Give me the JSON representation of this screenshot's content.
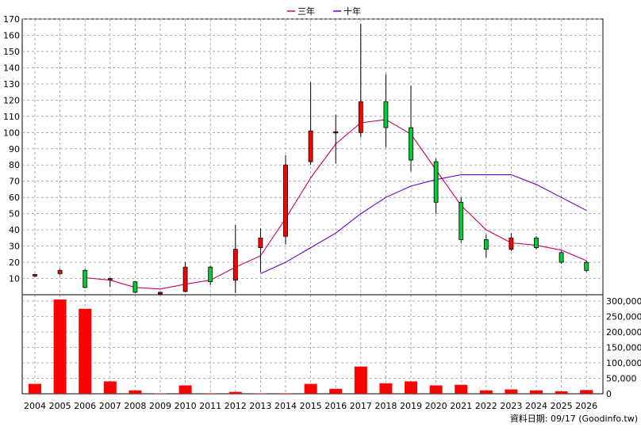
{
  "chart_data": [
    {
      "type": "candlestick",
      "categories": [
        "2004",
        "2005",
        "2006",
        "2007",
        "2008",
        "2009",
        "2010",
        "2011",
        "2012",
        "2013",
        "2014",
        "2015",
        "2016",
        "2017",
        "2018",
        "2019",
        "2020",
        "2021",
        "2022",
        "2023",
        "2024",
        "2025",
        "2026"
      ],
      "ylim": [
        0,
        170
      ],
      "yticks": [
        10,
        20,
        30,
        40,
        50,
        60,
        70,
        80,
        90,
        100,
        110,
        120,
        130,
        140,
        150,
        160,
        170
      ],
      "grid": true,
      "legend_position": "top-center",
      "candles": [
        {
          "year": "2004",
          "open": 12.5,
          "close": 11.5,
          "high": 12.8,
          "low": 11.0
        },
        {
          "year": "2005",
          "open": 15.0,
          "close": 13.0,
          "high": 16.0,
          "low": 12.0
        },
        {
          "year": "2006",
          "open": 4.5,
          "close": 15.0,
          "high": 16.0,
          "low": 4.0
        },
        {
          "year": "2007",
          "open": 10.0,
          "close": 9.5,
          "high": 10.5,
          "low": 5.0
        },
        {
          "year": "2008",
          "open": 1.5,
          "close": 8.0,
          "high": 8.0,
          "low": 1.0
        },
        {
          "year": "2009",
          "open": 1.5,
          "close": 0.5,
          "high": 1.8,
          "low": 0.3
        },
        {
          "year": "2010",
          "open": 17.0,
          "close": 2.0,
          "high": 20.0,
          "low": 1.5
        },
        {
          "year": "2011",
          "open": 8.0,
          "close": 17.0,
          "high": 18.0,
          "low": 6.0
        },
        {
          "year": "2012",
          "open": 28.0,
          "close": 9.0,
          "high": 43.0,
          "low": 1.0
        },
        {
          "year": "2013",
          "open": 35.0,
          "close": 29.0,
          "high": 41.0,
          "low": 14.0
        },
        {
          "year": "2014",
          "open": 80.0,
          "close": 36.0,
          "high": 86.0,
          "low": 31.0
        },
        {
          "year": "2015",
          "open": 101.0,
          "close": 82.0,
          "high": 131.0,
          "low": 80.0
        },
        {
          "year": "2016",
          "open": 100.5,
          "close": 100.0,
          "high": 111.0,
          "low": 81.0
        },
        {
          "year": "2017",
          "open": 119.0,
          "close": 100.0,
          "high": 167.0,
          "low": 97.0
        },
        {
          "year": "2018",
          "open": 103.0,
          "close": 119.0,
          "high": 136.0,
          "low": 91.0
        },
        {
          "year": "2019",
          "open": 83.0,
          "close": 103.0,
          "high": 129.0,
          "low": 76.0
        },
        {
          "year": "2020",
          "open": 57.0,
          "close": 82.0,
          "high": 84.0,
          "low": 50.0
        },
        {
          "year": "2021",
          "open": 34.0,
          "close": 57.0,
          "high": 60.0,
          "low": 32.0
        },
        {
          "year": "2022",
          "open": 28.0,
          "close": 34.0,
          "high": 37.0,
          "low": 23.0
        },
        {
          "year": "2023",
          "open": 35.0,
          "close": 28.0,
          "high": 38.0,
          "low": 27.0
        },
        {
          "year": "2024",
          "open": 29.0,
          "close": 35.0,
          "high": 36.0,
          "low": 28.0
        },
        {
          "year": "2025",
          "open": 20.0,
          "close": 26.0,
          "high": 27.0,
          "low": 19.0
        },
        {
          "year": "2026",
          "open": 15.0,
          "close": 20.0,
          "high": 21.0,
          "low": 14.0
        }
      ],
      "series": [
        {
          "name": "三年",
          "color": "#cc0066",
          "x": [
            "2006",
            "2007",
            "2008",
            "2009",
            "2010",
            "2011",
            "2012",
            "2013",
            "2014",
            "2015",
            "2016",
            "2017",
            "2018",
            "2019",
            "2020",
            "2021",
            "2022",
            "2023",
            "2024",
            "2025",
            "2026"
          ],
          "values": [
            10.5,
            9.0,
            4.5,
            3.5,
            6.5,
            9.0,
            17.0,
            24.0,
            47.0,
            72.0,
            93.0,
            106.0,
            108.0,
            99.0,
            77.0,
            55.0,
            40.0,
            32.0,
            30.5,
            27.5,
            21.0
          ]
        },
        {
          "name": "十年",
          "color": "#6600cc",
          "x": [
            "2013",
            "2014",
            "2015",
            "2016",
            "2017",
            "2018",
            "2019",
            "2020",
            "2021",
            "2022",
            "2023",
            "2024",
            "2025",
            "2026"
          ],
          "values": [
            13.0,
            20.0,
            29.0,
            38.0,
            50.0,
            60.0,
            67.0,
            71.0,
            74.0,
            74.0,
            74.0,
            68.0,
            60.0,
            52.0
          ]
        }
      ]
    },
    {
      "type": "bar",
      "categories": [
        "2004",
        "2005",
        "2006",
        "2007",
        "2008",
        "2009",
        "2010",
        "2011",
        "2012",
        "2013",
        "2014",
        "2015",
        "2016",
        "2017",
        "2018",
        "2019",
        "2020",
        "2021",
        "2022",
        "2023",
        "2024",
        "2025",
        "2026"
      ],
      "values": [
        32000,
        305000,
        275000,
        40000,
        11000,
        1000,
        27000,
        1500,
        6000,
        1000,
        1500,
        32000,
        16000,
        88000,
        34000,
        40000,
        27000,
        29000,
        11000,
        14000,
        11000,
        8000,
        12000
      ],
      "ylim": [
        0,
        300000
      ],
      "yticks": [
        "0",
        "50,000",
        "100,000",
        "150,000",
        "200,000",
        "250,000",
        "300,000"
      ],
      "color": "#ff0000"
    }
  ],
  "legend": [
    {
      "label": "三年",
      "color": "#cc0066"
    },
    {
      "label": "十年",
      "color": "#6600cc"
    }
  ],
  "colors": {
    "up": "#ff0000",
    "down": "#00cc33",
    "background": "#ffffff",
    "grid": "#999999"
  },
  "footer": "資料日期: 09/17  (Goodinfo.tw)"
}
